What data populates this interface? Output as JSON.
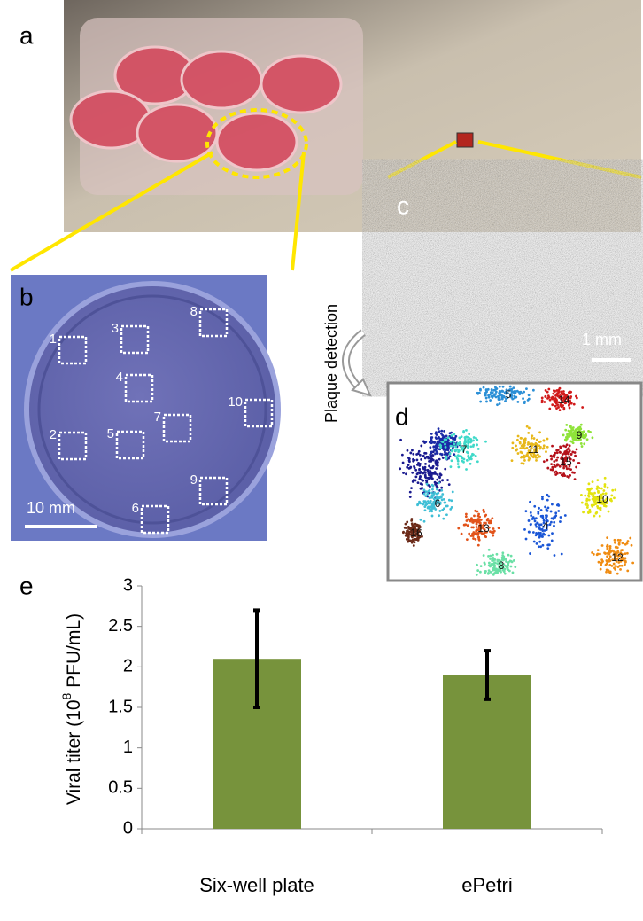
{
  "panels": {
    "a": {
      "label": "a"
    },
    "b": {
      "label": "b",
      "scale_bar": "10 mm",
      "wells": [
        "1",
        "2",
        "3",
        "4",
        "5",
        "6",
        "7",
        "8",
        "9",
        "10"
      ]
    },
    "c": {
      "label": "c",
      "scale_bar": "1 mm"
    },
    "arrow_label": "Plaque detection",
    "d": {
      "label": "d",
      "clusters": [
        "5",
        "14",
        "7",
        "9",
        "11",
        "15",
        "10",
        "6",
        "16",
        "13",
        "4",
        "8",
        "12"
      ]
    }
  },
  "chart_data": {
    "type": "bar",
    "panel_label": "e",
    "ylabel": {
      "text": "Viral titer (10",
      "superscript": "8",
      "unit": " PFU/mL)"
    },
    "categories": [
      "Six-well plate",
      "ePetri"
    ],
    "values": [
      2.1,
      1.9
    ],
    "errors": [
      0.6,
      0.3
    ],
    "color": "#77933c",
    "error_color": "#000000",
    "ylim": [
      0,
      3
    ],
    "yticks": [
      0,
      0.5,
      1,
      1.5,
      2,
      2.5,
      3
    ]
  }
}
